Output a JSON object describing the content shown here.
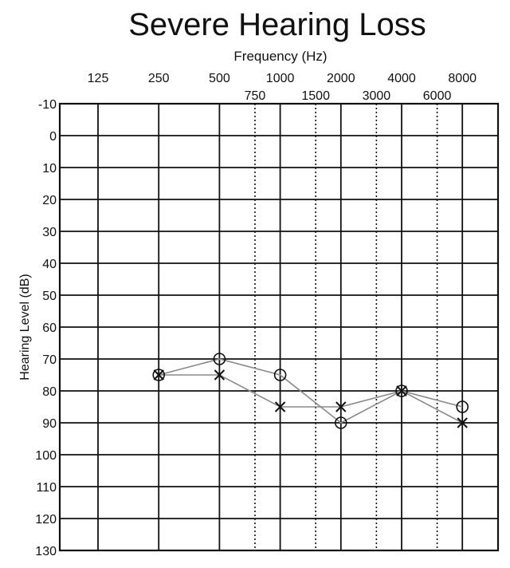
{
  "chart_data": {
    "type": "line",
    "title": "Severe Hearing Loss",
    "xlabel": "Frequency (Hz)",
    "ylabel": "Hearing Level (dB)",
    "title_color": "#9a1b3c",
    "x_ticks_primary": [
      "125",
      "250",
      "500",
      "1000",
      "2000",
      "4000",
      "8000"
    ],
    "x_ticks_secondary": [
      "750",
      "1500",
      "3000",
      "6000"
    ],
    "y_ticks": [
      -10,
      0,
      10,
      20,
      30,
      40,
      50,
      60,
      70,
      80,
      90,
      100,
      110,
      120,
      130
    ],
    "ylim": [
      -10,
      130
    ],
    "y_inverted": true,
    "grid": true,
    "x": [
      250,
      500,
      1000,
      2000,
      4000,
      8000
    ],
    "series": [
      {
        "marker": "circle",
        "values": [
          75,
          70,
          75,
          90,
          80,
          85
        ]
      },
      {
        "marker": "x",
        "values": [
          75,
          75,
          85,
          85,
          80,
          90
        ]
      }
    ],
    "line_color": "#8a8a8a"
  }
}
